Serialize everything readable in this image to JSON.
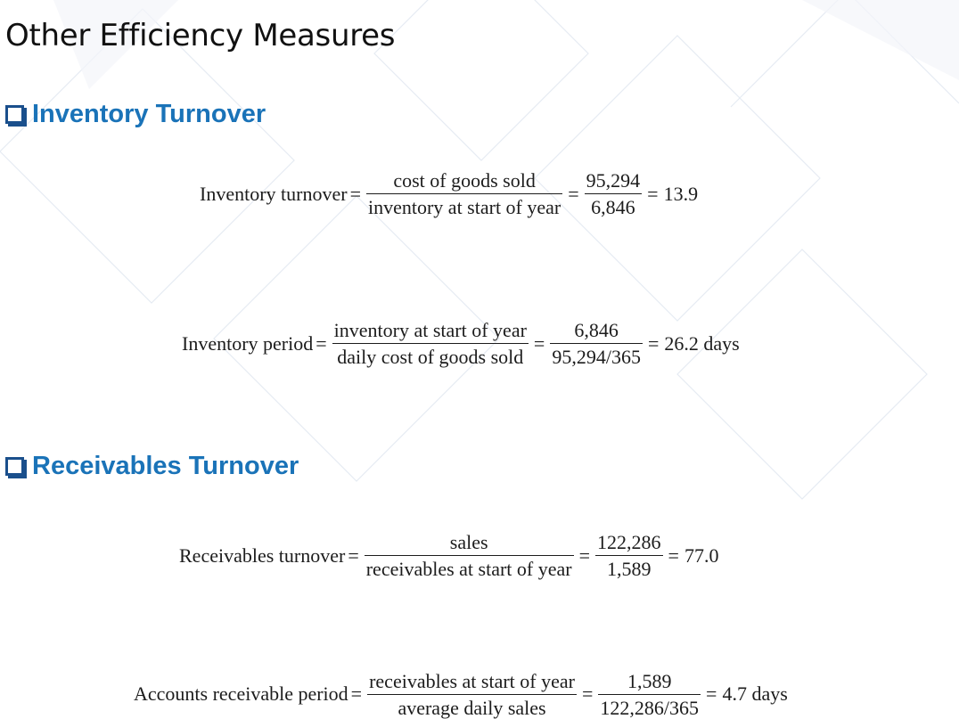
{
  "page": {
    "title": "Other Efficiency Measures"
  },
  "sections": [
    {
      "heading": "Inventory Turnover",
      "formulas": [
        {
          "label": "Inventory turnover",
          "num1": "cost of goods sold",
          "den1": "inventory at start of year",
          "num2": "95,294",
          "den2": "6,846",
          "result": "13.9"
        },
        {
          "label": "Inventory period",
          "num1": "inventory at start of year",
          "den1": "daily cost of goods sold",
          "num2": "6,846",
          "den2": "95,294/365",
          "result": "26.2 days"
        }
      ]
    },
    {
      "heading": "Receivables Turnover",
      "formulas": [
        {
          "label": "Receivables turnover",
          "num1": "sales",
          "den1": "receivables at start of year",
          "num2": "122,286",
          "den2": "1,589",
          "result": "77.0"
        },
        {
          "label": "Accounts receivable period",
          "num1": "receivables at start of year",
          "den1": "average daily sales",
          "num2": "1,589",
          "den2": "122,286/365",
          "result": "4.7 days"
        }
      ]
    }
  ],
  "symbols": {
    "equals": "="
  }
}
